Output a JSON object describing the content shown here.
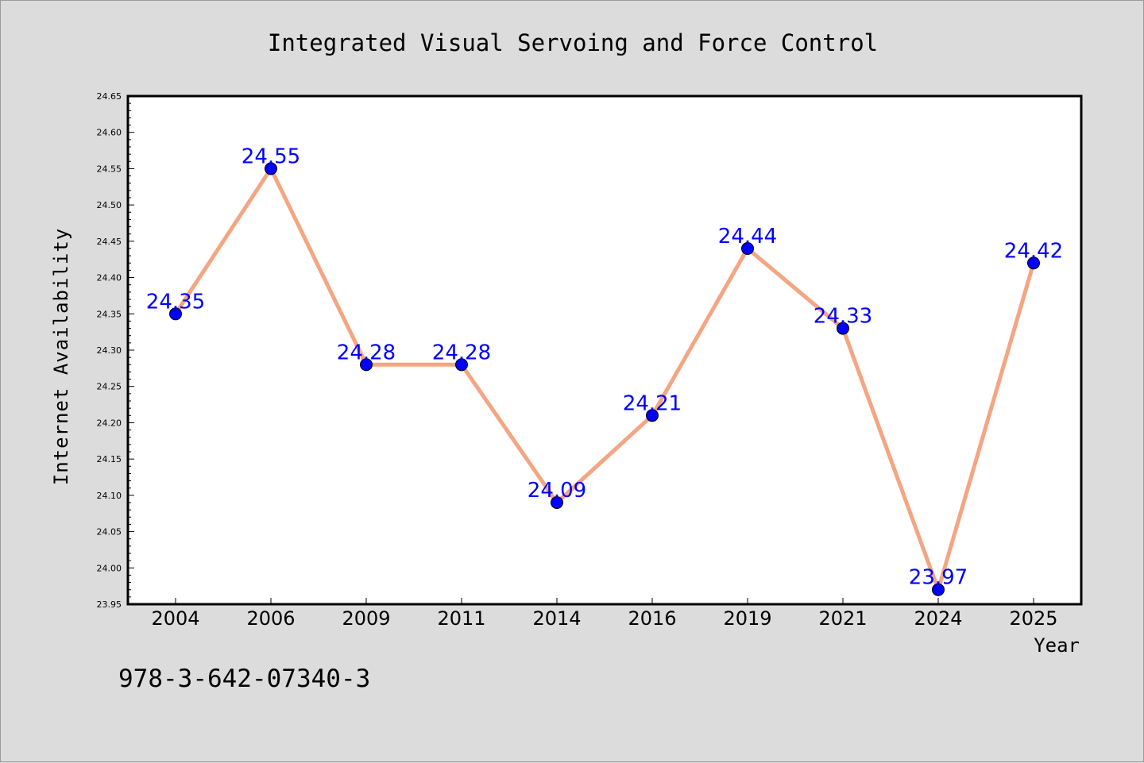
{
  "chart_data": {
    "type": "line",
    "title": "Integrated Visual Servoing and Force Control",
    "xlabel": "Year",
    "ylabel": "Internet Availability",
    "categories": [
      "2004",
      "2006",
      "2009",
      "2011",
      "2014",
      "2016",
      "2019",
      "2021",
      "2024",
      "2025"
    ],
    "series": [
      {
        "values": [
          24.35,
          24.55,
          24.28,
          24.28,
          24.09,
          24.21,
          24.44,
          24.33,
          23.97,
          24.42
        ],
        "labels": [
          "24.35",
          "24.55",
          "24.28",
          "24.28",
          "24.09",
          "24.21",
          "24.44",
          "24.33",
          "23.97",
          "24.42"
        ],
        "line_color": "#f4a582",
        "marker_color": "#0000ff"
      }
    ],
    "ylim": [
      23.95,
      24.65
    ],
    "yticks": [
      "23.95",
      "24.00",
      "24.05",
      "24.10",
      "24.15",
      "24.20",
      "24.25",
      "24.30",
      "24.35",
      "24.40",
      "24.45",
      "24.50",
      "24.55",
      "24.60",
      "24.65"
    ],
    "grid": false,
    "legend": "none"
  },
  "footer": {
    "isbn": "978-3-642-07340-3"
  }
}
